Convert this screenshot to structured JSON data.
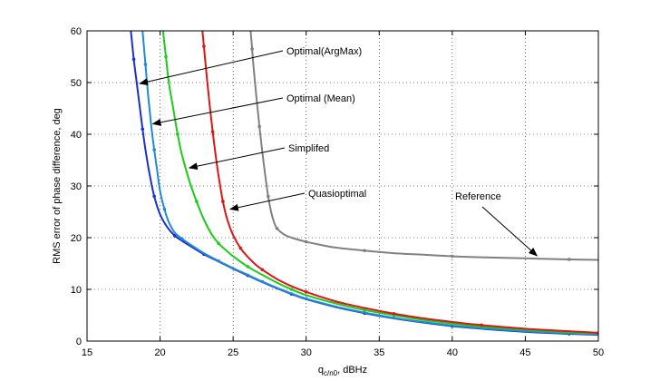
{
  "chart_data": {
    "type": "line",
    "title": "",
    "xlabel_main": "q",
    "xlabel_sub": "c/n0",
    "xlabel_tail": ", dBHz",
    "ylabel": "RMS error of phase difference, deg",
    "xlim": [
      15,
      50
    ],
    "ylim": [
      0,
      60
    ],
    "xticks": [
      15,
      20,
      25,
      30,
      35,
      40,
      45,
      50
    ],
    "yticks": [
      0,
      10,
      20,
      30,
      40,
      50,
      60
    ],
    "grid": true,
    "series": [
      {
        "name": "Optimal(ArgMax)",
        "color": "#1a2fd0",
        "x": [
          18.0,
          18.2,
          18.4,
          18.6,
          18.8,
          19.0,
          19.3,
          19.6,
          20.0,
          20.5,
          21.0,
          21.5,
          22.0,
          23.0,
          24.0,
          25.0,
          26.0,
          27.0,
          28.0,
          29.0,
          30.0,
          32.0,
          34.0,
          36.0,
          38.0,
          40.0,
          42.0,
          45.0,
          48.0,
          50.0
        ],
        "values": [
          60,
          54.5,
          50,
          45.5,
          41,
          37,
          32,
          28,
          24.5,
          22,
          20.4,
          19.4,
          18.5,
          16.8,
          15.4,
          14.0,
          12.7,
          11.4,
          10.2,
          9.1,
          8.1,
          6.6,
          5.4,
          4.4,
          3.6,
          2.9,
          2.4,
          1.8,
          1.4,
          1.2
        ]
      },
      {
        "name": "Optimal (Mean)",
        "color": "#1f8ad6",
        "x": [
          18.8,
          19.0,
          19.2,
          19.4,
          19.6,
          19.8,
          20.0,
          20.3,
          20.6,
          21.0,
          21.5,
          22.0,
          23.0,
          24.0,
          25.0,
          26.0,
          27.0,
          28.0,
          29.0,
          30.0,
          32.0,
          34.0,
          36.0,
          38.0,
          40.0,
          42.0,
          45.0,
          48.0,
          50.0
        ],
        "values": [
          60,
          53.5,
          47,
          41.5,
          37,
          33,
          29,
          25.5,
          23,
          21,
          19.8,
          18.8,
          17.0,
          15.5,
          14.1,
          12.8,
          11.5,
          10.3,
          9.2,
          8.2,
          6.7,
          5.5,
          4.5,
          3.7,
          3.0,
          2.5,
          1.9,
          1.5,
          1.3
        ]
      },
      {
        "name": "Simplifed",
        "color": "#19cc19",
        "x": [
          20.2,
          20.4,
          20.6,
          20.9,
          21.2,
          21.5,
          22.0,
          22.5,
          23.0,
          23.5,
          24.0,
          24.5,
          25.0,
          26.0,
          27.0,
          28.0,
          29.0,
          30.0,
          32.0,
          34.0,
          36.0,
          38.0,
          40.0,
          42.0,
          45.0,
          48.0,
          50.0
        ],
        "values": [
          60,
          55,
          50,
          45,
          40,
          36,
          31,
          27,
          23.5,
          20.8,
          18.9,
          17.6,
          16.4,
          14.4,
          12.8,
          11.3,
          10.0,
          8.9,
          7.3,
          6.0,
          5.0,
          4.1,
          3.4,
          2.8,
          2.2,
          1.7,
          1.5
        ]
      },
      {
        "name": "Quasioptimal",
        "color": "#dd1515",
        "x": [
          22.9,
          23.0,
          23.2,
          23.4,
          23.6,
          23.8,
          24.0,
          24.3,
          24.6,
          25.0,
          25.5,
          26.0,
          26.5,
          27.0,
          28.0,
          29.0,
          30.0,
          32.0,
          34.0,
          36.0,
          38.0,
          40.0,
          42.0,
          45.0,
          48.0,
          50.0
        ],
        "values": [
          60,
          57,
          51,
          45.5,
          40.5,
          36,
          32,
          27,
          23.5,
          20.5,
          18,
          16.3,
          14.9,
          13.8,
          12.0,
          10.6,
          9.5,
          7.7,
          6.4,
          5.3,
          4.4,
          3.7,
          3.1,
          2.4,
          1.9,
          1.6
        ]
      },
      {
        "name": "Reference",
        "color": "#808080",
        "x": [
          26.2,
          26.3,
          26.4,
          26.6,
          26.8,
          27.0,
          27.2,
          27.4,
          27.6,
          27.8,
          28.0,
          28.5,
          29.0,
          30.0,
          31.0,
          32.0,
          34.0,
          36.0,
          38.0,
          40.0,
          42.0,
          45.0,
          48.0,
          50.0
        ],
        "values": [
          60,
          56.5,
          53,
          47,
          41.5,
          36.5,
          32,
          28,
          25,
          23,
          21.8,
          20.6,
          20.0,
          19.2,
          18.6,
          18.1,
          17.5,
          17.0,
          16.7,
          16.4,
          16.2,
          16.0,
          15.8,
          15.7
        ]
      }
    ],
    "annotations": [
      {
        "text": "Optimal(ArgMax)",
        "target": [
          18.6,
          49.8
        ]
      },
      {
        "text": "Optimal (Mean)",
        "target": [
          19.5,
          42.0
        ]
      },
      {
        "text": "Simplifed",
        "target": [
          22.0,
          33.5
        ]
      },
      {
        "text": "Quasioptimal",
        "target": [
          24.8,
          25.5
        ]
      },
      {
        "text": "Reference",
        "target": [
          45.8,
          16.5
        ]
      }
    ]
  }
}
